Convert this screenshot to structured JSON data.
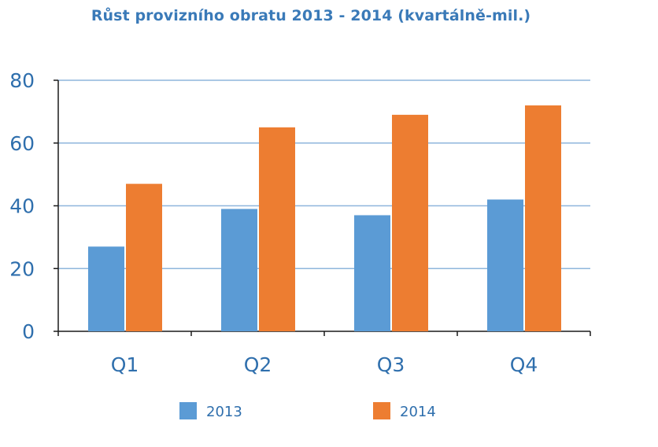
{
  "chart_data": {
    "type": "bar",
    "title": "Růst provizního obratu 2013 - 2014 (kvartálně-mil.)",
    "xlabel": "",
    "ylabel": "",
    "categories": [
      "Q1",
      "Q2",
      "Q3",
      "Q4"
    ],
    "series": [
      {
        "name": "2013",
        "values": [
          27,
          39,
          37,
          42
        ],
        "color": "#5b9bd5"
      },
      {
        "name": "2014",
        "values": [
          47,
          65,
          69,
          72
        ],
        "color": "#ed7d31"
      }
    ],
    "ylim": [
      0,
      80
    ],
    "yticks": [
      "0",
      "20",
      "40",
      "60",
      "80"
    ],
    "grid": true,
    "legend_position": "bottom",
    "colors": {
      "text": "#2f6fad",
      "gridline": "#8fb6dc",
      "axis": "#1a1a1a"
    }
  }
}
